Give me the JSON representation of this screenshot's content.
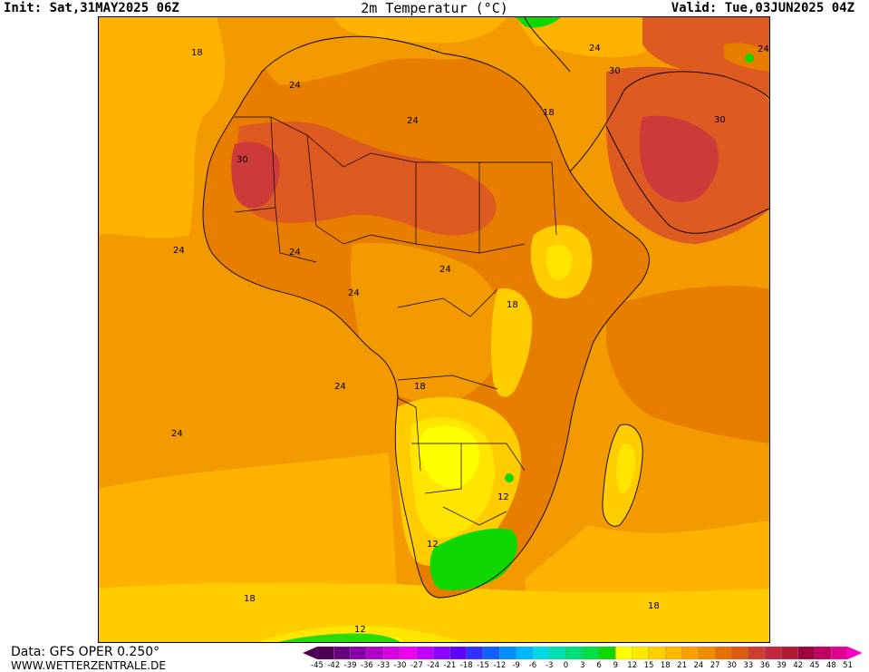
{
  "header": {
    "init": "Init: Sat,31MAY2025 06Z",
    "title": "2m Temperatur (°C)",
    "valid": "Valid: Tue,03JUN2025 04Z"
  },
  "footer": {
    "data_source": "Data: GFS OPER 0.250°",
    "website": "WWW.WETTERZENTRALE.DE"
  },
  "map": {
    "region": "Africa",
    "parameter": "2m temperature",
    "contour_labels": [
      "18",
      "24",
      "24",
      "30",
      "24",
      "24",
      "24",
      "18",
      "24",
      "24",
      "18",
      "12",
      "12",
      "18",
      "18",
      "12",
      "24",
      "30",
      "18",
      "24",
      "30",
      "24"
    ],
    "colors": {
      "t9_12": "#0ed800",
      "t12_15": "#ffff00",
      "t15_18": "#ffe500",
      "t18_21": "#ffcc00",
      "t21_24": "#ffb300",
      "t24_27": "#f29a00",
      "t27_30": "#e87e00",
      "t30_33": "#dd5a20",
      "t33_36": "#cc3a3a"
    }
  },
  "legend": {
    "labels": [
      "-45",
      "-42",
      "-39",
      "-36",
      "-33",
      "-30",
      "-27",
      "-24",
      "-21",
      "-18",
      "-15",
      "-12",
      "-9",
      "-6",
      "-3",
      "0",
      "3",
      "6",
      "9",
      "12",
      "15",
      "18",
      "21",
      "24",
      "27",
      "30",
      "33",
      "36",
      "39",
      "42",
      "45",
      "48",
      "51"
    ],
    "colors": [
      "#4b0052",
      "#6a0080",
      "#8a00a8",
      "#b000c8",
      "#d600e0",
      "#f000f0",
      "#c000ff",
      "#9000ff",
      "#6000ff",
      "#3030ff",
      "#1060ff",
      "#0090ff",
      "#00b8ff",
      "#00d8e8",
      "#00e0b0",
      "#00e078",
      "#00e040",
      "#10d800",
      "#ffff00",
      "#ffe800",
      "#ffd000",
      "#ffb800",
      "#ffa000",
      "#f28a00",
      "#e87000",
      "#dd5a10",
      "#d03c30",
      "#c42840",
      "#b01830",
      "#a00040",
      "#c00060",
      "#e00090"
    ]
  }
}
